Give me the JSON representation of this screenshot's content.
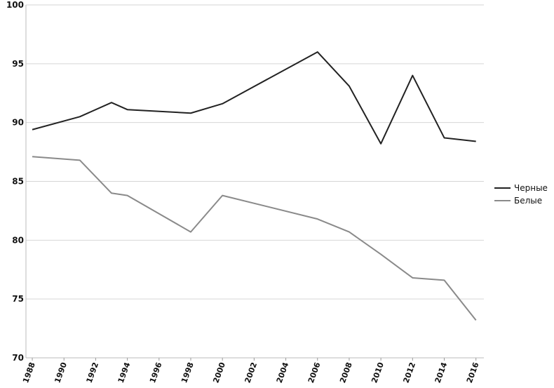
{
  "chart_data": {
    "type": "line",
    "x": [
      1988,
      1991,
      1993,
      1994,
      1998,
      2000,
      2006,
      2008,
      2010,
      2012,
      2014,
      2016
    ],
    "series": [
      {
        "name": "Черные",
        "color": "#222222",
        "values": [
          89.4,
          90.5,
          91.7,
          91.1,
          90.8,
          91.6,
          96.0,
          93.1,
          88.2,
          94.0,
          88.7,
          88.4
        ]
      },
      {
        "name": "Белые",
        "color": "#8a8a8a",
        "values": [
          87.1,
          86.8,
          84.0,
          83.8,
          80.7,
          83.8,
          81.8,
          80.7,
          78.8,
          76.8,
          76.6,
          73.2
        ]
      }
    ],
    "xlim": [
      1987.6,
      2016.5
    ],
    "xticks": [
      1988,
      1990,
      1992,
      1994,
      1996,
      1998,
      2000,
      2002,
      2004,
      2006,
      2008,
      2010,
      2012,
      2014,
      2016
    ],
    "ylim": [
      70,
      100
    ],
    "yticks": [
      70,
      75,
      80,
      85,
      90,
      95,
      100
    ],
    "grid": true,
    "legend": "right"
  }
}
